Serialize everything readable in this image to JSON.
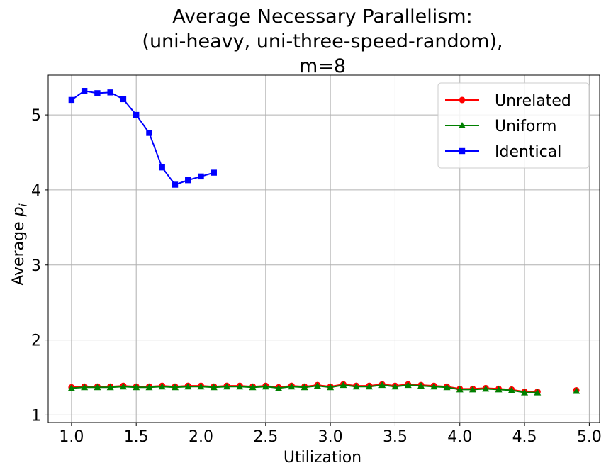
{
  "chart_data": {
    "type": "line",
    "title_lines": [
      "Average Necessary Parallelism:",
      "(uni-heavy, uni-three-speed-random),",
      "m=8"
    ],
    "xlabel": "Utilization",
    "ylabel_prefix": "Average ",
    "ylabel_var": "p",
    "ylabel_sub": "i",
    "xlim": [
      0.82,
      5.08
    ],
    "ylim": [
      0.9,
      5.53
    ],
    "xticks": [
      1.0,
      1.5,
      2.0,
      2.5,
      3.0,
      3.5,
      4.0,
      4.5,
      5.0
    ],
    "xtick_labels": [
      "1.0",
      "1.5",
      "2.0",
      "2.5",
      "3.0",
      "3.5",
      "4.0",
      "4.5",
      "5.0"
    ],
    "yticks": [
      1,
      2,
      3,
      4,
      5
    ],
    "ytick_labels": [
      "1",
      "2",
      "3",
      "4",
      "5"
    ],
    "grid": true,
    "legend_position": "top-right",
    "series": [
      {
        "name": "Unrelated",
        "color": "#ff0000",
        "marker": "circle",
        "segments": [
          [
            [
              1.0,
              1.37
            ],
            [
              1.1,
              1.38
            ],
            [
              1.2,
              1.38
            ],
            [
              1.3,
              1.38
            ],
            [
              1.4,
              1.39
            ],
            [
              1.5,
              1.38
            ],
            [
              1.6,
              1.38
            ],
            [
              1.7,
              1.39
            ],
            [
              1.8,
              1.38
            ],
            [
              1.9,
              1.39
            ],
            [
              2.0,
              1.39
            ],
            [
              2.1,
              1.38
            ],
            [
              2.2,
              1.39
            ],
            [
              2.3,
              1.39
            ],
            [
              2.4,
              1.38
            ],
            [
              2.5,
              1.39
            ],
            [
              2.6,
              1.37
            ],
            [
              2.7,
              1.39
            ],
            [
              2.8,
              1.38
            ],
            [
              2.9,
              1.4
            ],
            [
              3.0,
              1.38
            ],
            [
              3.1,
              1.41
            ],
            [
              3.2,
              1.39
            ],
            [
              3.3,
              1.39
            ],
            [
              3.4,
              1.41
            ],
            [
              3.5,
              1.39
            ],
            [
              3.6,
              1.41
            ],
            [
              3.7,
              1.4
            ],
            [
              3.8,
              1.39
            ],
            [
              3.9,
              1.38
            ],
            [
              4.0,
              1.35
            ],
            [
              4.1,
              1.35
            ],
            [
              4.2,
              1.36
            ],
            [
              4.3,
              1.35
            ],
            [
              4.4,
              1.34
            ],
            [
              4.5,
              1.31
            ],
            [
              4.6,
              1.31
            ]
          ],
          [
            [
              4.9,
              1.33
            ]
          ]
        ]
      },
      {
        "name": "Uniform",
        "color": "#008000",
        "marker": "triangle",
        "segments": [
          [
            [
              1.0,
              1.36
            ],
            [
              1.1,
              1.37
            ],
            [
              1.2,
              1.37
            ],
            [
              1.3,
              1.37
            ],
            [
              1.4,
              1.38
            ],
            [
              1.5,
              1.37
            ],
            [
              1.6,
              1.37
            ],
            [
              1.7,
              1.38
            ],
            [
              1.8,
              1.37
            ],
            [
              1.9,
              1.38
            ],
            [
              2.0,
              1.38
            ],
            [
              2.1,
              1.37
            ],
            [
              2.2,
              1.38
            ],
            [
              2.3,
              1.38
            ],
            [
              2.4,
              1.37
            ],
            [
              2.5,
              1.38
            ],
            [
              2.6,
              1.36
            ],
            [
              2.7,
              1.38
            ],
            [
              2.8,
              1.37
            ],
            [
              2.9,
              1.39
            ],
            [
              3.0,
              1.37
            ],
            [
              3.1,
              1.4
            ],
            [
              3.2,
              1.38
            ],
            [
              3.3,
              1.38
            ],
            [
              3.4,
              1.4
            ],
            [
              3.5,
              1.38
            ],
            [
              3.6,
              1.4
            ],
            [
              3.7,
              1.39
            ],
            [
              3.8,
              1.38
            ],
            [
              3.9,
              1.37
            ],
            [
              4.0,
              1.34
            ],
            [
              4.1,
              1.34
            ],
            [
              4.2,
              1.35
            ],
            [
              4.3,
              1.34
            ],
            [
              4.4,
              1.33
            ],
            [
              4.5,
              1.3
            ],
            [
              4.6,
              1.3
            ]
          ],
          [
            [
              4.9,
              1.32
            ]
          ]
        ]
      },
      {
        "name": "Identical",
        "color": "#0000ff",
        "marker": "square",
        "segments": [
          [
            [
              1.0,
              5.2
            ],
            [
              1.1,
              5.32
            ],
            [
              1.2,
              5.29
            ],
            [
              1.3,
              5.3
            ],
            [
              1.4,
              5.21
            ],
            [
              1.5,
              5.0
            ],
            [
              1.6,
              4.76
            ],
            [
              1.7,
              4.3
            ],
            [
              1.8,
              4.07
            ],
            [
              1.9,
              4.13
            ],
            [
              2.0,
              4.18
            ],
            [
              2.1,
              4.23
            ]
          ]
        ]
      }
    ]
  }
}
